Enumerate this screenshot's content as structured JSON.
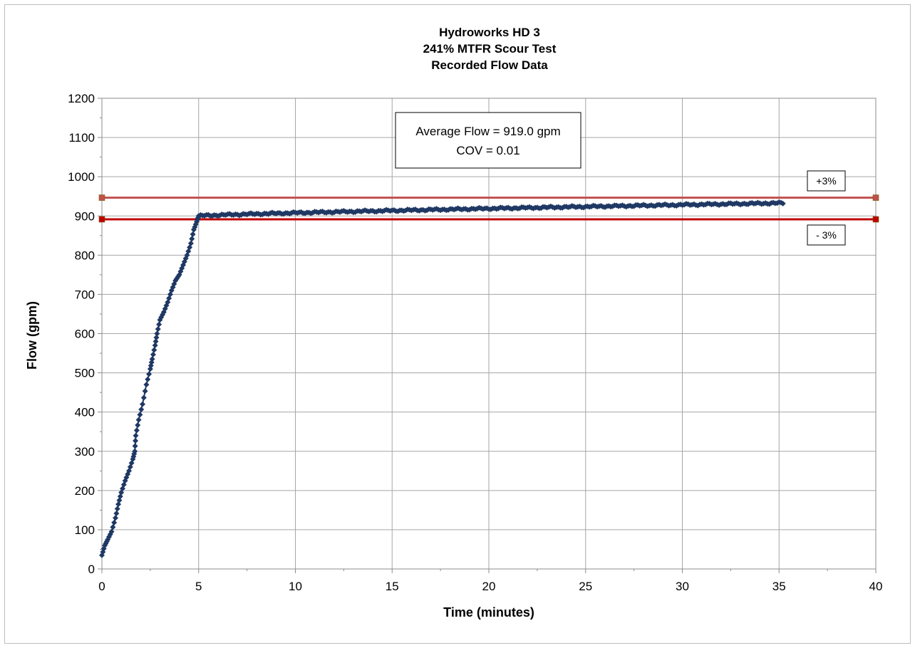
{
  "chart_data": {
    "type": "line",
    "title_lines": [
      "Hydroworks HD 3",
      "241% MTFR Scour Test",
      "Recorded Flow Data"
    ],
    "xlabel": "Time (minutes)",
    "ylabel": "Flow (gpm)",
    "xlim": [
      0,
      40
    ],
    "ylim": [
      0,
      1200
    ],
    "x_ticks": [
      0,
      5,
      10,
      15,
      20,
      25,
      30,
      35,
      40
    ],
    "y_ticks": [
      0,
      100,
      200,
      300,
      400,
      500,
      600,
      700,
      800,
      900,
      1000,
      1100,
      1200
    ],
    "grid": true,
    "annotation": {
      "line1": "Average Flow = 919.0 gpm",
      "line2": "COV = 0.01"
    },
    "reference_lines": [
      {
        "label": "+3%",
        "y": 946.6,
        "color": "#c0504d"
      },
      {
        "label": "- 3%",
        "y": 891.4,
        "color": "#c00000"
      }
    ],
    "series": [
      {
        "color": "#1f3864",
        "marker": "diamond",
        "x": [
          0,
          0.15,
          0.3,
          0.5,
          0.7,
          0.85,
          1.0,
          1.2,
          1.4,
          1.6,
          1.7,
          1.75,
          1.9,
          2.1,
          2.3,
          2.5,
          2.6,
          2.75,
          2.85,
          3.0,
          3.2,
          3.4,
          3.6,
          3.8,
          4.0,
          4.2,
          4.4,
          4.6,
          4.75,
          4.9,
          5.0
        ],
        "y": [
          35,
          60,
          75,
          95,
          130,
          165,
          195,
          225,
          250,
          280,
          300,
          340,
          380,
          420,
          470,
          510,
          535,
          570,
          600,
          635,
          655,
          680,
          710,
          735,
          750,
          775,
          800,
          830,
          865,
          885,
          900
        ],
        "plateau": {
          "x_start": 5.0,
          "x_end": 35.2,
          "y_start": 900,
          "y_end": 933
        }
      }
    ]
  }
}
